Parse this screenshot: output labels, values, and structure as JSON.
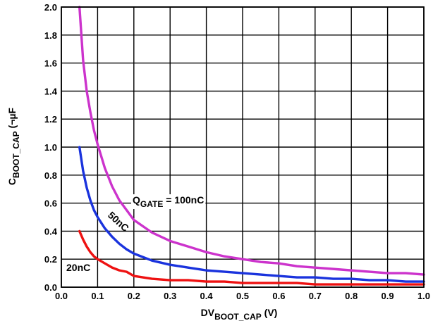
{
  "chart_data": {
    "type": "line",
    "x_ticks": [
      "0.0",
      "0.1",
      "0.2",
      "0.3",
      "0.4",
      "0.5",
      "0.6",
      "0.7",
      "0.8",
      "0.9",
      "1.0"
    ],
    "y_ticks": [
      "0.0",
      "0.2",
      "0.4",
      "0.6",
      "0.8",
      "1.0",
      "1.2",
      "1.4",
      "1.6",
      "1.8",
      "2.0"
    ],
    "xlim": [
      0.0,
      1.0
    ],
    "ylim": [
      0.0,
      2.0
    ],
    "grid": true,
    "xlabel": {
      "main": "DV",
      "sub": "BOOT_CAP",
      "tail": " (V)"
    },
    "ylabel": {
      "main": "C",
      "sub": "BOOT_CAP",
      "tail": " (¬µF"
    },
    "series": [
      {
        "label": {
          "main": "Q",
          "sub": "GATE",
          "tail": " = 100nC"
        },
        "color": "#cc33cc",
        "x": [
          0.05,
          0.06,
          0.07,
          0.08,
          0.09,
          0.1,
          0.12,
          0.14,
          0.16,
          0.18,
          0.2,
          0.25,
          0.3,
          0.35,
          0.4,
          0.45,
          0.5,
          0.55,
          0.6,
          0.65,
          0.7,
          0.75,
          0.8,
          0.85,
          0.9,
          0.95,
          1.0
        ],
        "values": [
          2.0,
          1.62,
          1.4,
          1.25,
          1.12,
          1.02,
          0.85,
          0.72,
          0.62,
          0.55,
          0.48,
          0.39,
          0.33,
          0.29,
          0.25,
          0.22,
          0.2,
          0.18,
          0.17,
          0.15,
          0.14,
          0.13,
          0.12,
          0.11,
          0.1,
          0.1,
          0.09
        ]
      },
      {
        "label": "50nC",
        "color": "#1a33dd",
        "x": [
          0.05,
          0.06,
          0.07,
          0.08,
          0.09,
          0.1,
          0.12,
          0.14,
          0.16,
          0.18,
          0.2,
          0.25,
          0.3,
          0.35,
          0.4,
          0.45,
          0.5,
          0.55,
          0.6,
          0.65,
          0.7,
          0.75,
          0.8,
          0.85,
          0.9,
          0.95,
          1.0
        ],
        "values": [
          1.0,
          0.83,
          0.71,
          0.62,
          0.55,
          0.5,
          0.42,
          0.36,
          0.31,
          0.27,
          0.24,
          0.19,
          0.16,
          0.14,
          0.12,
          0.11,
          0.1,
          0.09,
          0.08,
          0.07,
          0.07,
          0.06,
          0.06,
          0.05,
          0.05,
          0.04,
          0.04
        ]
      },
      {
        "label": "20nC",
        "color": "#ee1111",
        "x": [
          0.05,
          0.06,
          0.07,
          0.08,
          0.09,
          0.1,
          0.12,
          0.14,
          0.16,
          0.18,
          0.2,
          0.25,
          0.3,
          0.35,
          0.4,
          0.45,
          0.5,
          0.55,
          0.6,
          0.65,
          0.7,
          0.75,
          0.8,
          0.85,
          0.9,
          0.95,
          1.0
        ],
        "values": [
          0.4,
          0.34,
          0.29,
          0.25,
          0.22,
          0.2,
          0.17,
          0.14,
          0.12,
          0.11,
          0.08,
          0.06,
          0.05,
          0.05,
          0.04,
          0.04,
          0.03,
          0.03,
          0.03,
          0.03,
          0.02,
          0.02,
          0.02,
          0.02,
          0.02,
          0.02,
          0.02
        ]
      }
    ]
  }
}
